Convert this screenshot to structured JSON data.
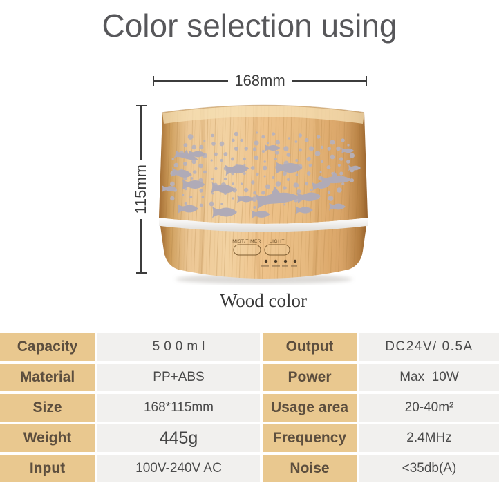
{
  "page": {
    "title": "Color selection using",
    "caption": "Wood color"
  },
  "product": {
    "width_label": "168mm",
    "height_label": "115mm",
    "button_mist_label": "MIST/TIMER",
    "button_light_label": "LIGHT"
  },
  "colors": {
    "title_text": "#57575a",
    "table_label_bg": "#e9c88f",
    "table_value_bg": "#f1f0ee",
    "label_text": "#5c4e3e",
    "value_text": "#4b4b4b",
    "wood_mid": "#eec28a",
    "cutout_gray": "#b3aeb9"
  },
  "spec_table": {
    "left": [
      {
        "label": "Capacity",
        "value": "500ml"
      },
      {
        "label": "Material",
        "value": "PP+ABS"
      },
      {
        "label": "Size",
        "value": "168*115mm"
      },
      {
        "label": "Weight",
        "value": "445g"
      },
      {
        "label": "Input",
        "value": "100V-240V AC"
      }
    ],
    "right": [
      {
        "label": "Output",
        "value": "DC24V/ 0.5A"
      },
      {
        "label": "Power",
        "value": "Max  10W"
      },
      {
        "label": "Usage area",
        "value": "20-40m²"
      },
      {
        "label": "Frequency",
        "value": "2.4MHz"
      },
      {
        "label": "Noise",
        "value": "<35db(A)"
      }
    ]
  }
}
